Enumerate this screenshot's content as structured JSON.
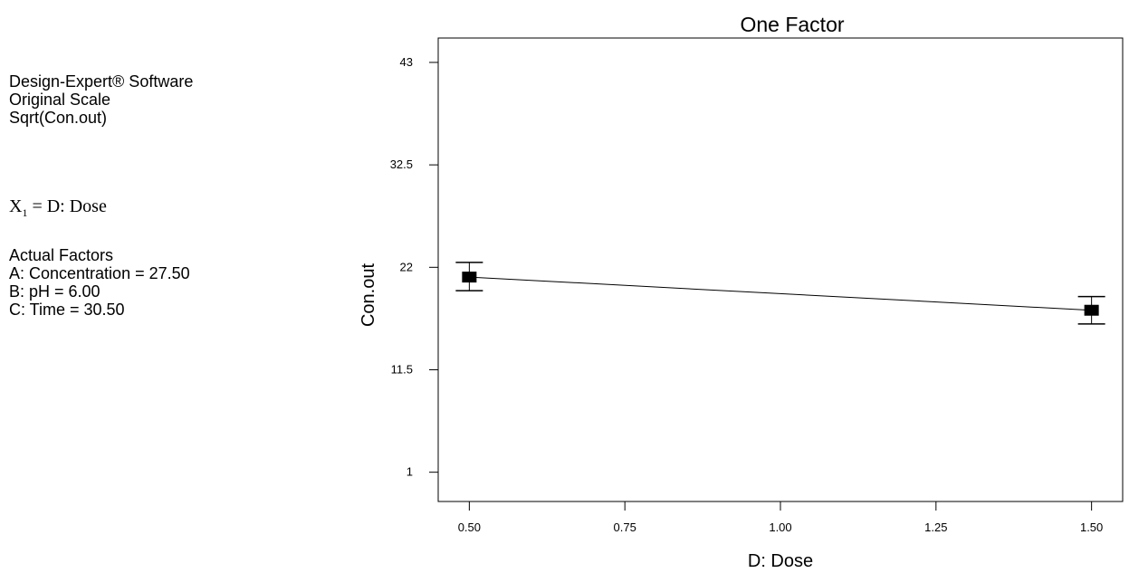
{
  "info": {
    "software_lines": [
      "Design-Expert® Software",
      "Original Scale",
      "Sqrt(Con.out)"
    ],
    "factor_symbol": "X",
    "factor_subscript": "1",
    "factor_text": " = D: Dose",
    "actual_title": "Actual Factors",
    "actual_lines": [
      "A: Concentration = 27.50",
      "B: pH = 6.00",
      "C: Time = 30.50"
    ]
  },
  "chart_data": {
    "type": "line",
    "title": "One Factor",
    "xlabel": "D: Dose",
    "ylabel": "Con.out",
    "xlim": [
      0.45,
      1.55
    ],
    "ylim": [
      -2,
      45.5
    ],
    "x_ticks": [
      0.5,
      0.75,
      1.0,
      1.25,
      1.5
    ],
    "x_tick_labels": [
      "0.50",
      "0.75",
      "1.00",
      "1.25",
      "1.50"
    ],
    "y_ticks": [
      1,
      11.5,
      22,
      32.5,
      43
    ],
    "y_tick_labels": [
      "1",
      "11.5",
      "22",
      "32.5",
      "43"
    ],
    "grid": false,
    "series": [
      {
        "x": [
          0.5,
          1.5
        ],
        "y": [
          21.0,
          17.6
        ],
        "error_low": [
          19.6,
          16.2
        ],
        "error_high": [
          22.5,
          19.0
        ]
      }
    ],
    "colors": {
      "line": "#000000",
      "marker": "#000000",
      "frame": "#000000"
    }
  }
}
